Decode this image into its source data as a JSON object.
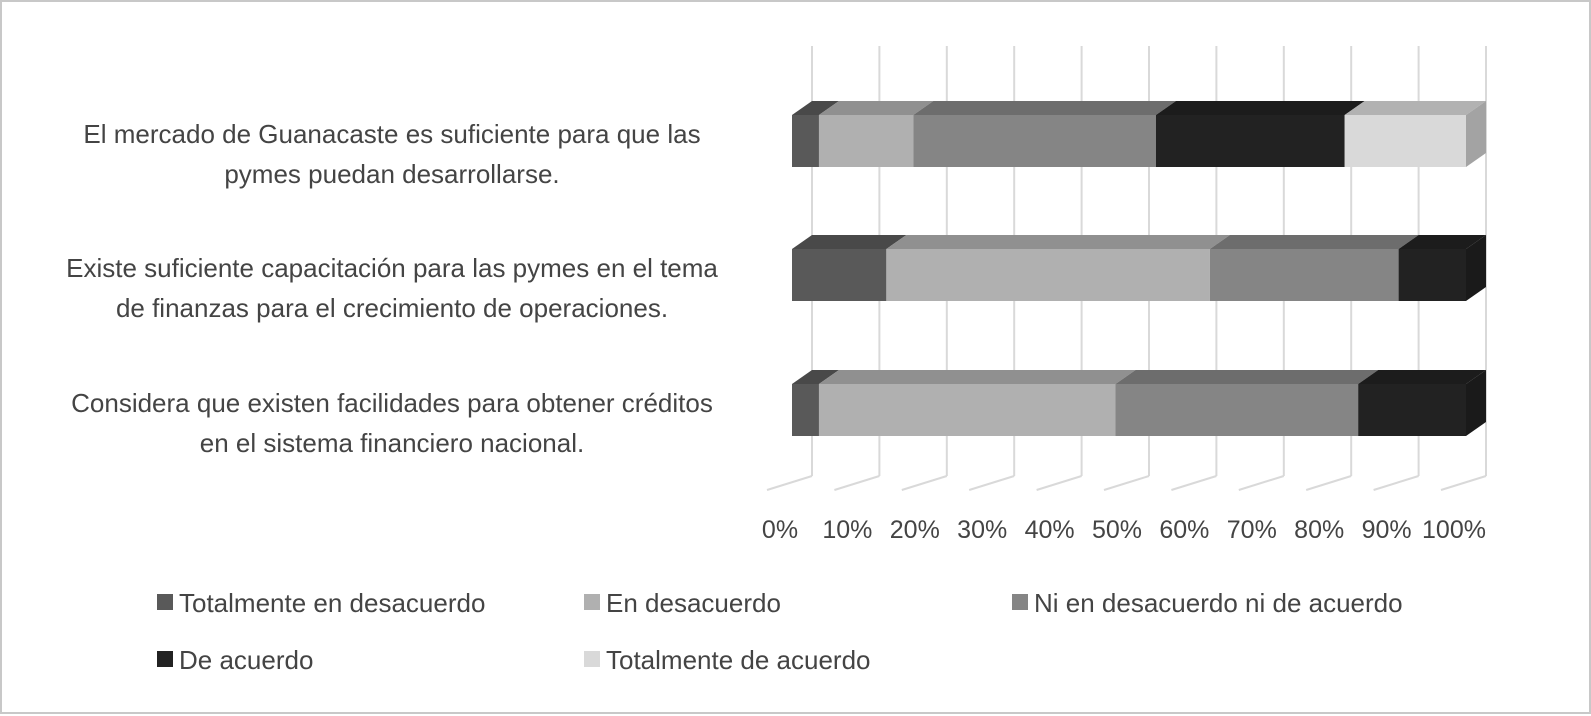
{
  "chart_data": {
    "type": "bar",
    "orientation": "horizontal",
    "stacked": "percent",
    "three_d": true,
    "categories": [
      [
        "El mercado de Guanacaste es suficiente para que las",
        "pymes puedan desarrollarse."
      ],
      [
        "Existe suficiente capacitación para las pymes en el tema",
        "de finanzas para el crecimiento de operaciones."
      ],
      [
        "Considera que existen facilidades para obtener créditos",
        "en el sistema financiero nacional."
      ]
    ],
    "series": [
      {
        "name": "Totalmente en desacuerdo",
        "color": "#595959",
        "values": [
          4,
          14,
          4
        ]
      },
      {
        "name": "En desacuerdo",
        "color": "#b0b0b0",
        "values": [
          14,
          48,
          44
        ]
      },
      {
        "name": "Ni en desacuerdo ni de acuerdo",
        "color": "#858585",
        "values": [
          36,
          28,
          36
        ]
      },
      {
        "name": "De acuerdo",
        "color": "#222222",
        "values": [
          28,
          10,
          16
        ]
      },
      {
        "name": "Totalmente de acuerdo",
        "color": "#d9d9d9",
        "values": [
          18,
          0,
          0
        ]
      }
    ],
    "xlim": [
      0,
      100
    ],
    "xticks": [
      "0%",
      "10%",
      "20%",
      "30%",
      "40%",
      "50%",
      "60%",
      "70%",
      "80%",
      "90%",
      "100%"
    ],
    "grid": true,
    "legend_position": "bottom"
  }
}
